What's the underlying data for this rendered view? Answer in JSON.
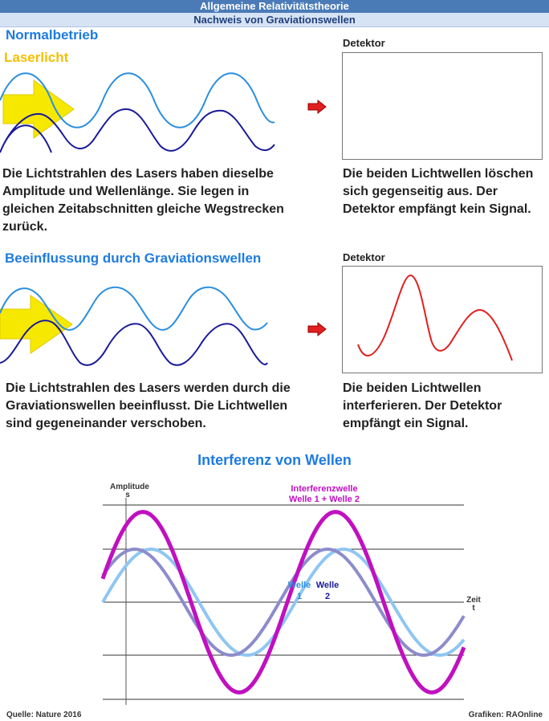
{
  "header": {
    "title": "Allgemeine Relativitätstheorie",
    "subtitle": "Nachweis von Graviationswellen"
  },
  "section1": {
    "heading": "Normalbetrieb",
    "laser_label": "Laserlicht",
    "detector_label": "Detektor",
    "text_left": "Die Lichtstrahlen des Lasers haben dieselbe Amplitude und Wellenlänge. Sie legen in gleichen Zeitabschnitten gleiche Wegstrecken zurück.",
    "text_right": "Die beiden Lichtwellen löschen sich gegenseitig aus. Der Detektor empfängt kein Signal."
  },
  "section2": {
    "heading": "Beeinflussung durch Graviationswellen",
    "detector_label": "Detektor",
    "text_left": "Die Lichtstrahlen des Lasers werden durch die Graviationswellen beeinflusst. Die Lichtwellen sind gegeneinander verschoben.",
    "text_right": "Die beiden Lichtwellen interferieren. Der Detektor empfängt ein Signal."
  },
  "interference": {
    "title": "Interferenz von Wellen",
    "y_axis_label_line1": "Amplitude",
    "y_axis_label_line2": "s",
    "x_axis_label_line1": "Zeit",
    "x_axis_label_line2": "t",
    "sum_label_line1": "Interferenzwelle",
    "sum_label_line2": "Welle 1 + Welle 2",
    "wave1_label_line1": "Welle",
    "wave1_label_line2": "1",
    "wave2_label_line1": "Welle",
    "wave2_label_line2": "2"
  },
  "colors": {
    "accent": "#1e7be0",
    "laser": "#f5bf00",
    "wave_light": "#2a8fe0",
    "wave_dark": "#1a1a9a",
    "signal": "#e02020",
    "arrow": "#e02020",
    "interference": "#c010c0",
    "wave1": "#8fc6f2",
    "wave2": "#8c8ccc"
  },
  "footer": {
    "source": "Quelle: Nature 2016",
    "credit": "Grafiken: RAOnline"
  }
}
